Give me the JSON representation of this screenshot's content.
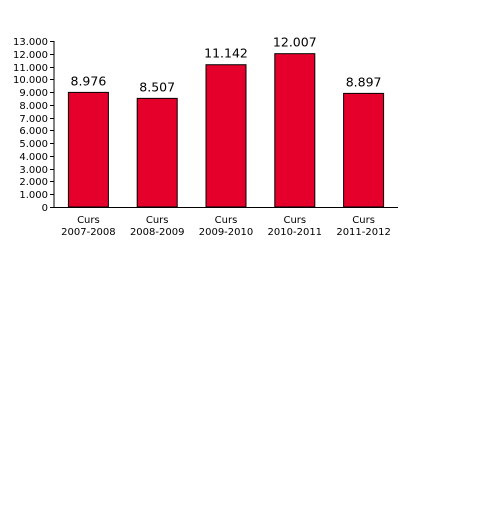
{
  "chart_data": {
    "type": "bar",
    "title": "",
    "xlabel": "",
    "ylabel": "",
    "categories": [
      [
        "Curs",
        "2007-2008"
      ],
      [
        "Curs",
        "2008-2009"
      ],
      [
        "Curs",
        "2009-2010"
      ],
      [
        "Curs",
        "2010-2011"
      ],
      [
        "Curs",
        "2011-2012"
      ]
    ],
    "values": [
      8976,
      8507,
      11142,
      12007,
      8897
    ],
    "value_labels": [
      "8.976",
      "8.507",
      "11.142",
      "12.007",
      "8.897"
    ],
    "ylim": [
      0,
      13000
    ],
    "yticks": [
      0,
      1000,
      2000,
      3000,
      4000,
      5000,
      6000,
      7000,
      8000,
      9000,
      10000,
      11000,
      12000,
      13000
    ],
    "ytick_labels": [
      "0",
      "1.000",
      "2.000",
      "3.000",
      "4.000",
      "5.000",
      "6.000",
      "7.000",
      "8.000",
      "9.000",
      "10.000",
      "11.000",
      "12.000",
      "13.000"
    ],
    "grid": false,
    "legend": "none",
    "bar_color": "#e4002b",
    "bar_stroke": "#000000"
  }
}
